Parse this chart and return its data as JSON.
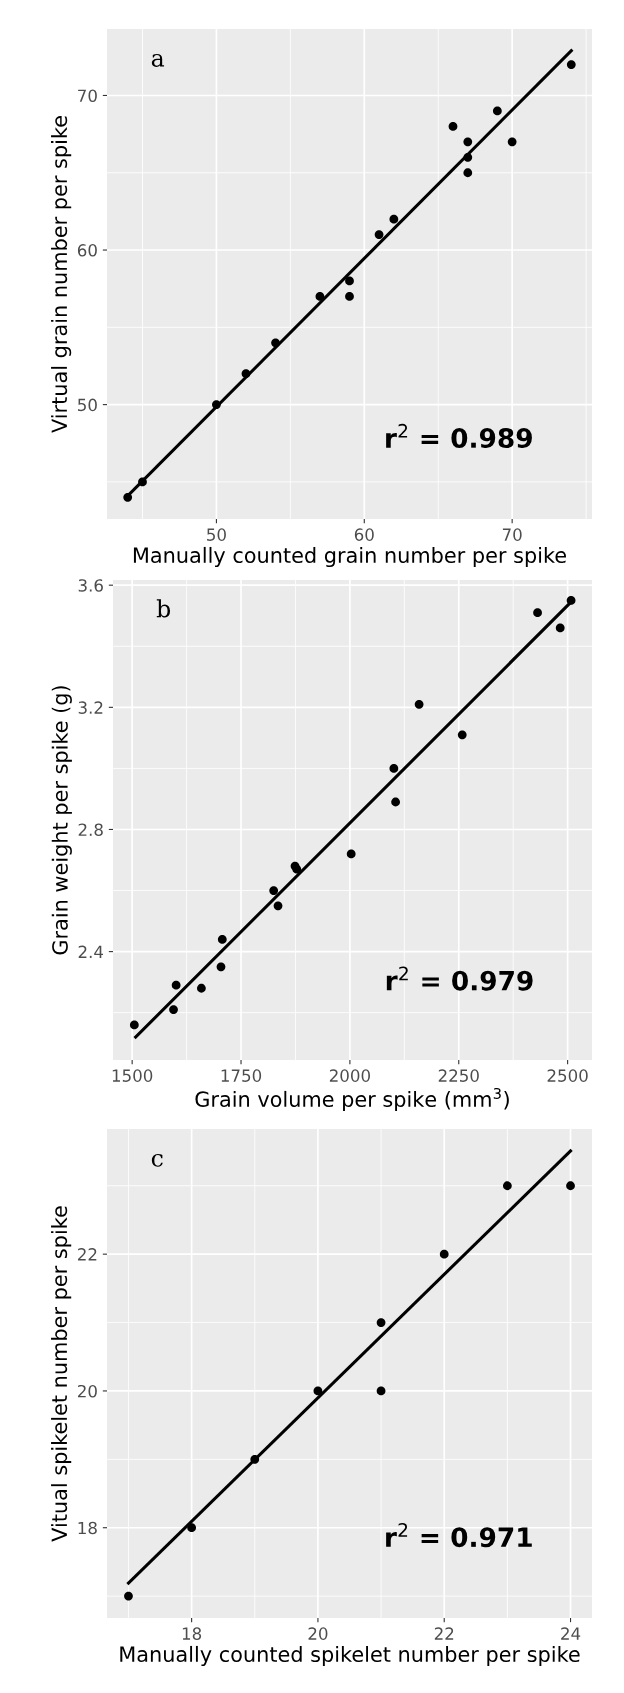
{
  "chart_data": [
    {
      "type": "scatter",
      "xlabel": "Manually counted grain number per spike",
      "ylabel": "Virtual grain number per spike",
      "xlim": [
        42.6,
        75.4
      ],
      "ylim": [
        42.6,
        74.3
      ],
      "xticks": [
        50,
        60,
        70
      ],
      "yticks": [
        50,
        60,
        70
      ],
      "grid": true,
      "annotations": [
        "a",
        "r$^{2}$ = 0.989"
      ],
      "series": [
        {
          "marker": "circle",
          "color": "#000000",
          "x": [
            44,
            45,
            50,
            52,
            54,
            57,
            59,
            59,
            61,
            62,
            66,
            67,
            67,
            67,
            69,
            70,
            74
          ],
          "values": [
            44,
            45,
            50,
            52,
            54,
            57,
            58,
            57,
            61,
            62,
            68,
            67,
            66,
            65,
            69,
            67,
            72
          ]
        },
        {
          "type": "line",
          "color": "#000000",
          "x": [
            44,
            74
          ],
          "values": [
            44.1,
            72.9
          ]
        }
      ]
    },
    {
      "type": "scatter",
      "xlabel": "Grain volume per spike (mm$^{3}$)",
      "ylabel": "Grain weight per spike (g)",
      "xlim": [
        1456,
        2556
      ],
      "ylim": [
        2.045,
        3.617
      ],
      "xticks": [
        1500,
        1750,
        2000,
        2250,
        2500
      ],
      "yticks": [
        {
          "value": 2.4,
          "label": "2.4"
        },
        {
          "value": 2.8,
          "label": "2.8"
        },
        {
          "value": 3.2,
          "label": "3.2"
        },
        {
          "value": 3.6,
          "label": "3.6"
        }
      ],
      "grid": true,
      "annotations": [
        "b",
        "r$^{2}$ = 0.979"
      ],
      "series": [
        {
          "marker": "circle",
          "color": "#000000",
          "x": [
            1505,
            1595,
            1601,
            1659,
            1704,
            1707,
            1825,
            1835,
            1874,
            1878,
            2003,
            2101,
            2105,
            2159,
            2258,
            2431,
            2483,
            2508
          ],
          "values": [
            2.16,
            2.21,
            2.29,
            2.28,
            2.35,
            2.44,
            2.6,
            2.55,
            2.68,
            2.67,
            2.72,
            3.0,
            2.89,
            3.21,
            3.11,
            3.51,
            3.46,
            3.55
          ]
        },
        {
          "type": "line",
          "color": "#000000",
          "x": [
            1508,
            2508
          ],
          "values": [
            2.12,
            3.545
          ]
        }
      ]
    },
    {
      "type": "scatter",
      "xlabel": "Manually counted spikelet number per spike",
      "ylabel": "Vitual spikelet number per spike",
      "xlim": [
        16.66,
        24.34
      ],
      "ylim": [
        16.68,
        23.83
      ],
      "xticks": [
        18,
        20,
        22,
        24
      ],
      "yticks": [
        18,
        20,
        22
      ],
      "grid": true,
      "annotations": [
        "c",
        "r$^{2}$ = 0.971"
      ],
      "series": [
        {
          "marker": "circle",
          "color": "#000000",
          "x": [
            17,
            18,
            19,
            20,
            21,
            21,
            22,
            23,
            24
          ],
          "values": [
            17,
            18,
            19,
            20,
            21,
            20,
            22,
            23,
            23
          ]
        },
        {
          "type": "line",
          "color": "#000000",
          "x": [
            17,
            24
          ],
          "values": [
            17.19,
            23.51
          ]
        }
      ]
    }
  ]
}
